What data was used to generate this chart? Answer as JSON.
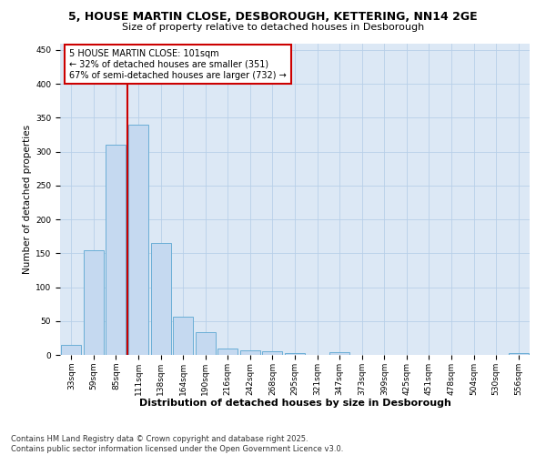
{
  "title": "5, HOUSE MARTIN CLOSE, DESBOROUGH, KETTERING, NN14 2GE",
  "subtitle": "Size of property relative to detached houses in Desborough",
  "xlabel": "Distribution of detached houses by size in Desborough",
  "ylabel": "Number of detached properties",
  "bins": [
    "33sqm",
    "59sqm",
    "85sqm",
    "111sqm",
    "138sqm",
    "164sqm",
    "190sqm",
    "216sqm",
    "242sqm",
    "268sqm",
    "295sqm",
    "321sqm",
    "347sqm",
    "373sqm",
    "399sqm",
    "425sqm",
    "451sqm",
    "478sqm",
    "504sqm",
    "530sqm",
    "556sqm"
  ],
  "values": [
    15,
    155,
    310,
    340,
    165,
    57,
    33,
    9,
    7,
    5,
    3,
    0,
    4,
    0,
    0,
    0,
    0,
    0,
    0,
    0,
    3
  ],
  "bar_color": "#c5d9f0",
  "bar_edgecolor": "#6aaed6",
  "vline_x": 2.5,
  "vline_color": "#cc0000",
  "annotation_text": "5 HOUSE MARTIN CLOSE: 101sqm\n← 32% of detached houses are smaller (351)\n67% of semi-detached houses are larger (732) →",
  "annotation_box_facecolor": "#ffffff",
  "annotation_box_edgecolor": "#cc0000",
  "ylim": [
    0,
    460
  ],
  "yticks": [
    0,
    50,
    100,
    150,
    200,
    250,
    300,
    350,
    400,
    450
  ],
  "background_color": "#dce8f5",
  "grid_color": "#b8cfe8",
  "footer_line1": "Contains HM Land Registry data © Crown copyright and database right 2025.",
  "footer_line2": "Contains public sector information licensed under the Open Government Licence v3.0.",
  "title_fontsize": 9,
  "subtitle_fontsize": 8,
  "xlabel_fontsize": 8,
  "ylabel_fontsize": 7.5,
  "tick_fontsize": 6.5,
  "annotation_fontsize": 7,
  "footer_fontsize": 6
}
